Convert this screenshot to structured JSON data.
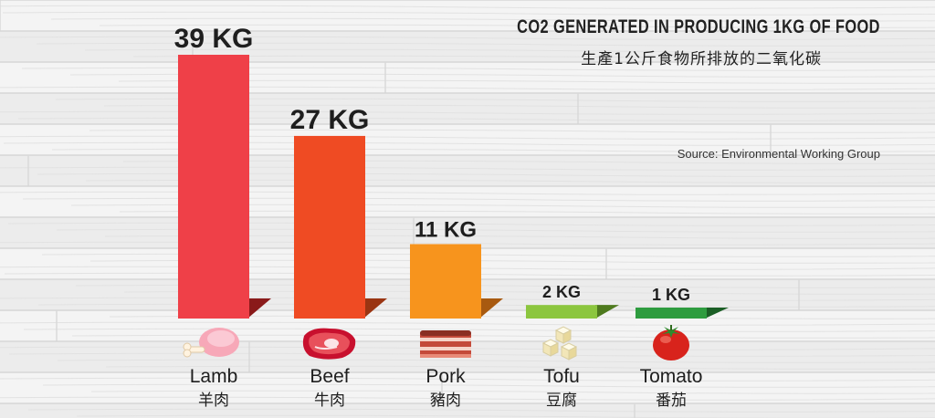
{
  "title": "CO2 GENERATED IN PRODUCING 1KG OF FOOD",
  "subtitle": "生產1公斤食物所排放的二氧化碳",
  "source": "Source: Environmental Working Group",
  "chart_data": {
    "type": "bar",
    "categories": [
      "Lamb",
      "Beef",
      "Pork",
      "Tofu",
      "Tomato"
    ],
    "categories_zh": [
      "羊肉",
      "牛肉",
      "豬肉",
      "豆腐",
      "番茄"
    ],
    "values": [
      39,
      27,
      11,
      2,
      1
    ],
    "value_labels": [
      "39 KG",
      "27 KG",
      "11 KG",
      "2 KG",
      "1 KG"
    ],
    "unit": "KG",
    "colors": [
      "#ef4048",
      "#ef4b23",
      "#f7941d",
      "#8cc63f",
      "#2e9c3f"
    ],
    "shadow_colors": [
      "#8a1a1a",
      "#9a3512",
      "#a85a10",
      "#4e7a1e",
      "#1a5e25"
    ],
    "icons": [
      "lamb-leg-icon",
      "beef-steak-icon",
      "pork-belly-icon",
      "tofu-cubes-icon",
      "tomato-icon"
    ],
    "grid": false,
    "legend": "none",
    "ylim": [
      0,
      39
    ]
  }
}
